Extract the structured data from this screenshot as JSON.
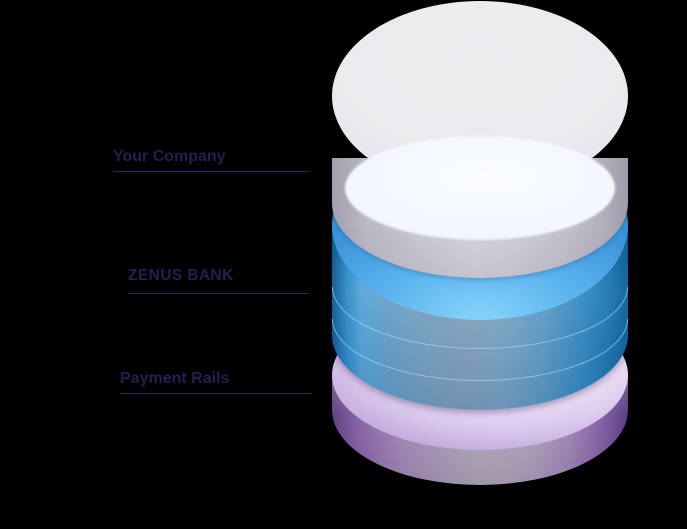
{
  "background_color": "#000000",
  "diagram": {
    "type": "layered-cylinder-stack",
    "labels": [
      {
        "text": "Your Company"
      },
      {
        "text": "ZENUS BANK"
      },
      {
        "text": "Payment Rails"
      }
    ],
    "layers": [
      {
        "name": "your-company-disk",
        "label": "Your Company",
        "color": "#eceaee"
      },
      {
        "name": "zenus-bank-cylinder",
        "label": "ZENUS BANK",
        "color": "#2e86c8"
      },
      {
        "name": "payment-rails-disk",
        "label": "Payment Rails",
        "color": "#c9b6e2"
      }
    ],
    "label_text_color": "#2b1c4f",
    "label_underline_color": "#34235f"
  }
}
